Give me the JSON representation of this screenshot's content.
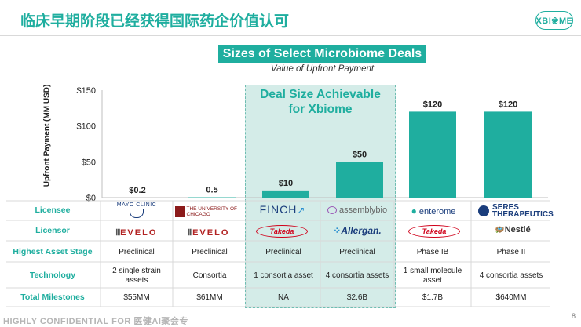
{
  "header": {
    "title": "临床早期阶段已经获得国际药企价值认可",
    "logo_text": "XBI❀ME"
  },
  "highlight": {
    "title_line1": "Deal Size Achievable",
    "title_line2": "for Xbiome"
  },
  "chart_data": {
    "type": "bar",
    "title": "Sizes of Select Microbiome Deals",
    "subtitle": "Value of Upfront Payment",
    "ylabel": "Upfront Payment (MM USD)",
    "ylim": [
      0,
      150
    ],
    "yticks": [
      "$0",
      "$50",
      "$100",
      "$150"
    ],
    "ytick_values": [
      0,
      50,
      100,
      150
    ],
    "categories": [
      "Mayo Clinic",
      "Chicago",
      "Finch",
      "Assembly Bio",
      "Enterome",
      "Seres"
    ],
    "values": [
      0.2,
      0.5,
      10,
      50,
      120,
      120
    ],
    "data_labels": [
      "$0.2",
      "0.5",
      "$10",
      "$50",
      "$120",
      "$120"
    ],
    "bar_color": "#1fae9f"
  },
  "table": {
    "row_labels": [
      "Licensee",
      "Licensor",
      "Highest Asset Stage",
      "Technology",
      "Total Milestones"
    ],
    "licensee": [
      "MAYO CLINIC",
      "THE UNIVERSITY OF CHICAGO",
      "FINCH",
      "assemblybio",
      "enterome",
      "SERES THERAPEUTICS"
    ],
    "licensor": [
      "EVELO",
      "EVELO",
      "Takeda",
      "Allergan.",
      "Takeda",
      "Nestlé"
    ],
    "stage": [
      "Preclinical",
      "Preclinical",
      "Preclinical",
      "Preclinical",
      "Phase IB",
      "Phase II"
    ],
    "technology": [
      [
        "2 single strain",
        "assets"
      ],
      [
        "Consortia",
        ""
      ],
      [
        "1 consortia asset",
        ""
      ],
      [
        "4 consortia assets",
        ""
      ],
      [
        "1 small molecule",
        "asset"
      ],
      [
        "4 consortia assets",
        ""
      ]
    ],
    "milestones": [
      "$55MM",
      "$61MM",
      "NA",
      "$2.6B",
      "$1.7B",
      "$640MM"
    ]
  },
  "footer": {
    "text": "HIGHLY CONFIDENTIAL FOR 医健AI聚会专",
    "page": "8"
  }
}
